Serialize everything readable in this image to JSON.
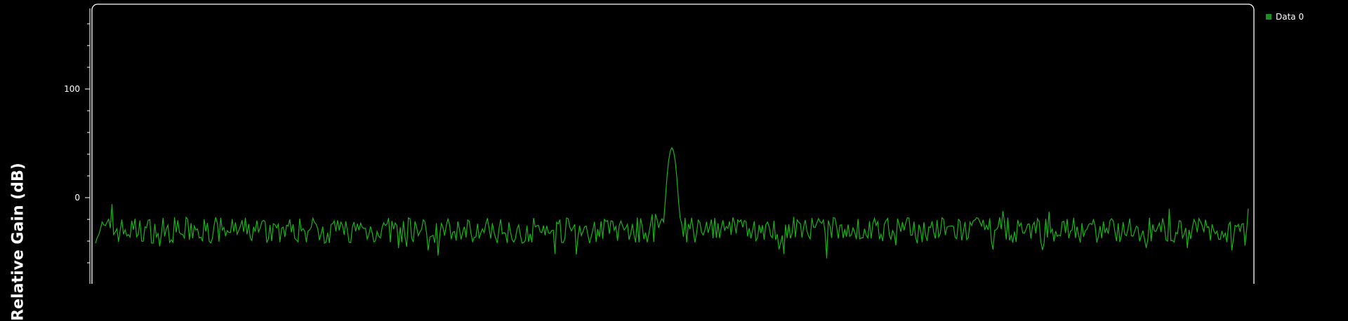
{
  "chart_data": {
    "type": "line",
    "ylabel": "Relative Gain (dB)",
    "xlabel": "",
    "title": "",
    "y_ticks": [
      {
        "value": 100,
        "label": "100"
      },
      {
        "value": 0,
        "label": "0"
      }
    ],
    "ylim": [
      -80,
      178
    ],
    "grid": false,
    "legend_position": "top-right",
    "series": [
      {
        "name": "Data 0",
        "color": "#19b319",
        "peak": {
          "x_fraction": 0.5,
          "value": 46
        },
        "noise_floor": -30,
        "noise_amplitude": 12
      }
    ],
    "legend": [
      {
        "label": "Data 0",
        "color": "#1f8f1f"
      }
    ]
  }
}
